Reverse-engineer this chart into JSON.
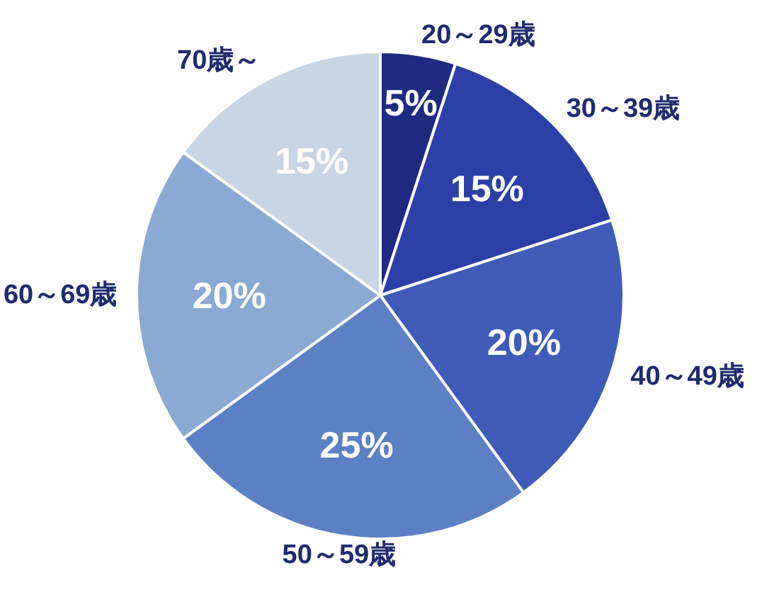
{
  "chart_data": {
    "type": "pie",
    "categories": [
      "20～29歳",
      "30～39歳",
      "40～49歳",
      "50～59歳",
      "60～69歳",
      "70歳～"
    ],
    "values": [
      5,
      15,
      20,
      25,
      20,
      15
    ],
    "value_labels": [
      "5%",
      "15%",
      "20%",
      "25%",
      "20%",
      "15%"
    ],
    "colors": [
      "#1f2b80",
      "#2b3fa6",
      "#3e5cb8",
      "#5c80c4",
      "#8aa9d3",
      "#c8d5e4"
    ]
  }
}
